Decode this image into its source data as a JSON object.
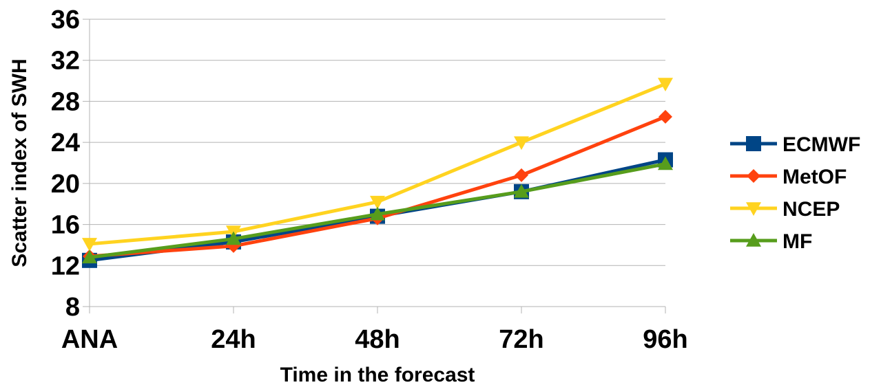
{
  "chart_data": {
    "type": "line",
    "title": "",
    "xlabel": "Time in the forecast",
    "ylabel": "Scatter index of SWH",
    "categories": [
      "ANA",
      "24h",
      "48h",
      "72h",
      "96h"
    ],
    "ylim": [
      8,
      36
    ],
    "yticks": [
      8,
      12,
      16,
      20,
      24,
      28,
      32,
      36
    ],
    "grid": "horizontal",
    "legend_position": "right",
    "series": [
      {
        "name": "ECMWF",
        "color": "#004586",
        "marker": "square",
        "values": [
          12.5,
          14.3,
          16.8,
          19.2,
          22.3
        ]
      },
      {
        "name": "MetOF",
        "color": "#ff420e",
        "marker": "diamond",
        "values": [
          12.9,
          13.9,
          16.6,
          20.8,
          26.5
        ]
      },
      {
        "name": "NCEP",
        "color": "#ffd320",
        "marker": "triangle-down",
        "values": [
          14.1,
          15.3,
          18.2,
          24.0,
          29.7
        ]
      },
      {
        "name": "MF",
        "color": "#579d1c",
        "marker": "triangle-up",
        "values": [
          12.8,
          14.6,
          17.0,
          19.2,
          21.9
        ]
      }
    ]
  }
}
